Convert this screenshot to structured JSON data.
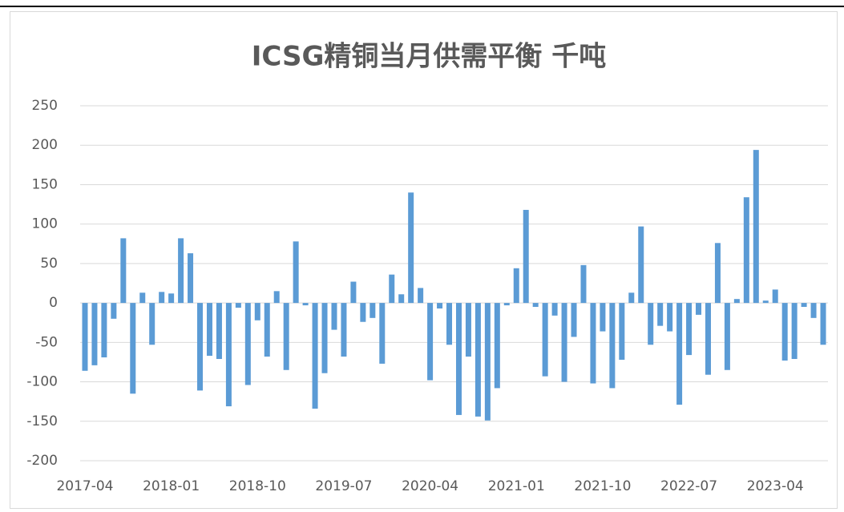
{
  "chart_data": {
    "type": "bar",
    "title": "ICSG精铜当月供需平衡 千吨",
    "categories": [
      "2017-04",
      null,
      null,
      null,
      null,
      null,
      null,
      null,
      null,
      "2018-01",
      null,
      null,
      null,
      null,
      null,
      null,
      null,
      null,
      "2018-10",
      null,
      null,
      null,
      null,
      null,
      null,
      null,
      null,
      "2019-07",
      null,
      null,
      null,
      null,
      null,
      null,
      null,
      null,
      "2020-04",
      null,
      null,
      null,
      null,
      null,
      null,
      null,
      null,
      "2021-01",
      null,
      null,
      null,
      null,
      null,
      null,
      null,
      null,
      "2021-10",
      null,
      null,
      null,
      null,
      null,
      null,
      null,
      null,
      "2022-07",
      null,
      null,
      null,
      null,
      null,
      null,
      null,
      null,
      "2023-04",
      null,
      null,
      null,
      null,
      null
    ],
    "values": [
      -86,
      -79,
      -69,
      -20,
      82,
      -115,
      13,
      -53,
      14,
      12,
      82,
      63,
      -111,
      -67,
      -71,
      -131,
      -6,
      -104,
      -22,
      -68,
      15,
      -85,
      78,
      -3,
      -134,
      -89,
      -34,
      -68,
      27,
      -24,
      -19,
      -77,
      36,
      11,
      140,
      19,
      -98,
      -7,
      -53,
      -142,
      -68,
      -144,
      -149,
      -108,
      -3,
      44,
      118,
      -5,
      -93,
      -16,
      -100,
      -43,
      48,
      -102,
      -36,
      -108,
      -72,
      13,
      97,
      -53,
      -29,
      -36,
      -129,
      -66,
      -15,
      -91,
      76,
      -85,
      5,
      134,
      194,
      3,
      17,
      -73,
      -71,
      -5,
      -19,
      -53
    ],
    "color": "#5b9bd5",
    "ylim": [
      -200,
      250
    ],
    "yticks": [
      -200,
      -150,
      -100,
      -50,
      0,
      50,
      100,
      150,
      200,
      250
    ],
    "grid": true
  }
}
